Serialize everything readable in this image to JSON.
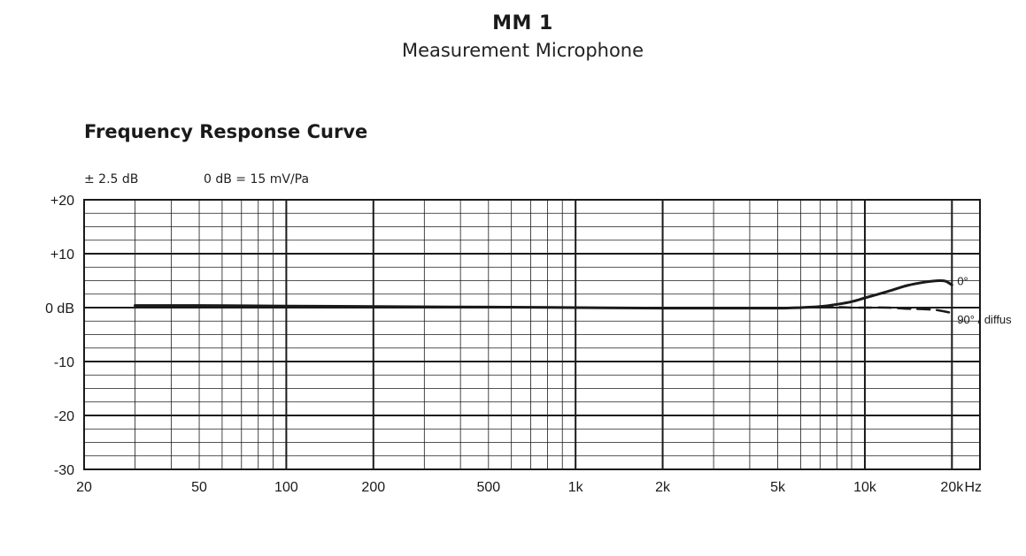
{
  "header": {
    "title": "MM 1",
    "subtitle": "Measurement Microphone"
  },
  "chart_data": {
    "type": "line",
    "title": "Frequency Response Curve",
    "notes": [
      "± 2.5 dB",
      "0 dB = 15 mV/Pa"
    ],
    "x_scale": "log",
    "xlim": [
      20,
      25000
    ],
    "ylim": [
      -30,
      20
    ],
    "xunit": "Hz",
    "x_tick_labels": [
      {
        "value": 20,
        "label": "20"
      },
      {
        "value": 50,
        "label": "50"
      },
      {
        "value": 100,
        "label": "100"
      },
      {
        "value": 200,
        "label": "200"
      },
      {
        "value": 500,
        "label": "500"
      },
      {
        "value": 1000,
        "label": "1k"
      },
      {
        "value": 2000,
        "label": "2k"
      },
      {
        "value": 5000,
        "label": "5k"
      },
      {
        "value": 10000,
        "label": "10k"
      },
      {
        "value": 20000,
        "label": "20k"
      }
    ],
    "x_major_grid": [
      100,
      200,
      1000,
      2000,
      10000,
      20000
    ],
    "y_tick_labels": [
      {
        "value": 20,
        "label": "+20"
      },
      {
        "value": 10,
        "label": "+10"
      },
      {
        "value": 0,
        "label": "0 dB"
      },
      {
        "value": -10,
        "label": "-10"
      },
      {
        "value": -20,
        "label": "-20"
      },
      {
        "value": -30,
        "label": "-30"
      }
    ],
    "grid": true,
    "series": [
      {
        "name": "0°",
        "style": "solid",
        "x": [
          30,
          50,
          100,
          200,
          500,
          1000,
          2000,
          3000,
          5000,
          6000,
          7000,
          8000,
          9000,
          10000,
          12000,
          14000,
          16000,
          18000,
          19000,
          20000
        ],
        "y": [
          0.4,
          0.4,
          0.3,
          0.2,
          0.1,
          0.0,
          -0.1,
          -0.1,
          -0.1,
          0.0,
          0.2,
          0.6,
          1.1,
          1.8,
          3.0,
          4.1,
          4.7,
          5.0,
          4.9,
          4.2
        ]
      },
      {
        "name": "90° / diffus",
        "style": "dashed",
        "x": [
          7000,
          8000,
          9000,
          10000,
          12000,
          14000,
          16000,
          18000,
          20000
        ],
        "y": [
          0.2,
          0.1,
          0.0,
          0.0,
          0.0,
          -0.2,
          -0.3,
          -0.5,
          -1.0
        ]
      }
    ]
  }
}
